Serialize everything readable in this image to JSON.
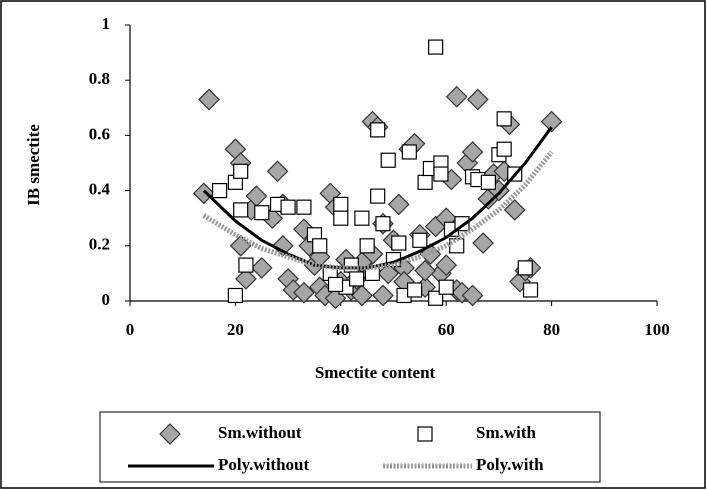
{
  "chart_data": {
    "type": "scatter",
    "x_label": "Smectite content",
    "y_label": "IB smectite",
    "xlim": [
      0,
      100
    ],
    "xticks": [
      0,
      20,
      40,
      60,
      80,
      100
    ],
    "ylim": [
      0,
      1
    ],
    "yticks": [
      0,
      0.2,
      0.4,
      0.6,
      0.8,
      1
    ],
    "grid": false,
    "legend": "bottom",
    "series": [
      {
        "name": "Sm.without",
        "mode": "markers",
        "marker": "diamond",
        "color": "#a6a6a6",
        "x": [
          15,
          14,
          20,
          21,
          21,
          22,
          23,
          24,
          25,
          27,
          28,
          29,
          29,
          30,
          31,
          33,
          33,
          35,
          36,
          37,
          38,
          39,
          39,
          40,
          41,
          42,
          43,
          44,
          45,
          46,
          46,
          47,
          48,
          48,
          49,
          50,
          51,
          52,
          53,
          54,
          55,
          56,
          57,
          58,
          59,
          60,
          61,
          62,
          62,
          63,
          64,
          65,
          65,
          66,
          67,
          68,
          69,
          70,
          71,
          72,
          73,
          74,
          75,
          76,
          80,
          34,
          36,
          44,
          52,
          56,
          60
        ],
        "values": [
          0.73,
          0.39,
          0.55,
          0.2,
          0.5,
          0.08,
          0.33,
          0.38,
          0.12,
          0.3,
          0.47,
          0.35,
          0.2,
          0.08,
          0.04,
          0.03,
          0.26,
          0.13,
          0.05,
          0.02,
          0.39,
          0.34,
          0.01,
          0.07,
          0.15,
          0.04,
          0.08,
          0.02,
          0.11,
          0.65,
          0.17,
          0.63,
          0.28,
          0.02,
          0.1,
          0.22,
          0.35,
          0.12,
          0.55,
          0.57,
          0.24,
          0.05,
          0.17,
          0.27,
          0.1,
          0.3,
          0.44,
          0.04,
          0.74,
          0.03,
          0.5,
          0.02,
          0.54,
          0.73,
          0.21,
          0.37,
          0.46,
          0.4,
          0.47,
          0.64,
          0.33,
          0.07,
          0.11,
          0.12,
          0.65,
          0.2,
          0.16,
          0.14,
          0.07,
          0.11,
          0.13
        ]
      },
      {
        "name": "Sm.with",
        "mode": "markers",
        "marker": "square",
        "color": "#ffffff",
        "x": [
          17,
          20,
          20,
          21,
          21,
          22,
          25,
          28,
          30,
          33,
          35,
          36,
          38,
          40,
          40,
          41,
          42,
          44,
          45,
          47,
          47,
          48,
          49,
          50,
          52,
          53,
          55,
          56,
          57,
          58,
          58,
          59,
          59,
          60,
          61,
          62,
          63,
          65,
          66,
          68,
          70,
          71,
          71,
          73,
          75,
          76,
          43,
          46,
          51,
          54,
          39
        ],
        "values": [
          0.4,
          0.02,
          0.43,
          0.33,
          0.47,
          0.13,
          0.32,
          0.35,
          0.34,
          0.34,
          0.24,
          0.2,
          0.1,
          0.35,
          0.3,
          0.05,
          0.13,
          0.3,
          0.2,
          0.62,
          0.38,
          0.28,
          0.51,
          0.15,
          0.02,
          0.54,
          0.22,
          0.43,
          0.48,
          0.92,
          0.01,
          0.5,
          0.46,
          0.05,
          0.26,
          0.2,
          0.28,
          0.45,
          0.44,
          0.43,
          0.53,
          0.66,
          0.55,
          0.46,
          0.12,
          0.04,
          0.08,
          0.1,
          0.21,
          0.04,
          0.06
        ]
      },
      {
        "name": "Poly.without",
        "mode": "line",
        "dashed": false,
        "color": "#000000",
        "x": [
          14,
          20,
          25,
          30,
          35,
          40,
          45,
          50,
          55,
          60,
          65,
          70,
          75,
          80
        ],
        "values": [
          0.4,
          0.29,
          0.22,
          0.17,
          0.13,
          0.12,
          0.12,
          0.14,
          0.18,
          0.23,
          0.3,
          0.39,
          0.5,
          0.63
        ]
      },
      {
        "name": "Poly.with",
        "mode": "line",
        "dashed": true,
        "color": "#999999",
        "x": [
          14,
          20,
          25,
          30,
          35,
          40,
          45,
          50,
          55,
          60,
          65,
          70,
          75,
          80
        ],
        "values": [
          0.31,
          0.24,
          0.19,
          0.16,
          0.13,
          0.12,
          0.12,
          0.13,
          0.16,
          0.2,
          0.26,
          0.33,
          0.42,
          0.54
        ]
      }
    ]
  }
}
